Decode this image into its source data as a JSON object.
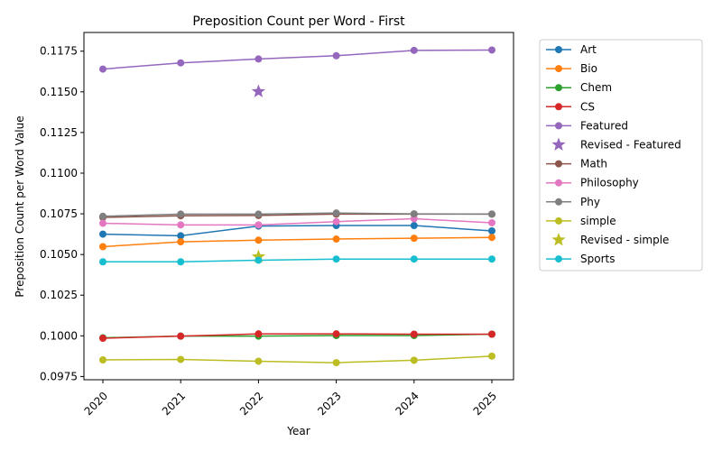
{
  "chart_data": {
    "type": "line",
    "title": "Preposition Count per Word - First",
    "xlabel": "Year",
    "ylabel": "Preposition Count per Word Value",
    "x": [
      "2020",
      "2021",
      "2022",
      "2023",
      "2024",
      "2025"
    ],
    "ylim": [
      0.0973,
      0.11865
    ],
    "yticks": [
      "0.0975",
      "0.1000",
      "0.1025",
      "0.1050",
      "0.1075",
      "0.1100",
      "0.1125",
      "0.1150",
      "0.1175"
    ],
    "grid": false,
    "legend_position": "outside-right",
    "series": [
      {
        "name": "Art",
        "color": "#1f77b4",
        "marker": "circle",
        "values": [
          0.10625,
          0.10615,
          0.10675,
          0.10678,
          0.10678,
          0.10645
        ]
      },
      {
        "name": "Bio",
        "color": "#ff7f0e",
        "marker": "circle",
        "values": [
          0.10548,
          0.10578,
          0.10588,
          0.10595,
          0.106,
          0.10605
        ]
      },
      {
        "name": "Chem",
        "color": "#2ca02c",
        "marker": "circle",
        "values": [
          0.09988,
          0.09998,
          0.09998,
          0.10002,
          0.10002,
          0.1001
        ]
      },
      {
        "name": "CS",
        "color": "#d62728",
        "marker": "circle",
        "values": [
          0.09985,
          0.09998,
          0.10012,
          0.10012,
          0.1001,
          0.1001
        ]
      },
      {
        "name": "Featured",
        "color": "#9467bd",
        "marker": "circle",
        "values": [
          0.1164,
          0.11678,
          0.11702,
          0.11722,
          0.11755,
          0.11757
        ]
      },
      {
        "name": "Revised - Featured",
        "color": "#9467bd",
        "marker": "star",
        "points": [
          {
            "x": "2022",
            "y": 0.11502
          }
        ]
      },
      {
        "name": "Math",
        "color": "#8c564b",
        "marker": "circle",
        "values": [
          0.10728,
          0.10738,
          0.1074,
          0.10748,
          0.10748,
          0.10748
        ]
      },
      {
        "name": "Philosophy",
        "color": "#e377c2",
        "marker": "circle",
        "values": [
          0.10692,
          0.10682,
          0.10682,
          0.10702,
          0.1072,
          0.10695
        ]
      },
      {
        "name": "Phy",
        "color": "#7f7f7f",
        "marker": "circle",
        "values": [
          0.10735,
          0.10748,
          0.10748,
          0.10755,
          0.1075,
          0.10748
        ]
      },
      {
        "name": "simple",
        "color": "#bcbd22",
        "marker": "circle",
        "values": [
          0.09852,
          0.09855,
          0.09844,
          0.09835,
          0.0985,
          0.09875
        ]
      },
      {
        "name": "Revised - simple",
        "color": "#bcbd22",
        "marker": "star",
        "points": [
          {
            "x": "2022",
            "y": 0.10486
          }
        ]
      },
      {
        "name": "Sports",
        "color": "#17becf",
        "marker": "circle",
        "values": [
          0.10455,
          0.10455,
          0.10465,
          0.10472,
          0.10472,
          0.10472
        ]
      }
    ]
  }
}
